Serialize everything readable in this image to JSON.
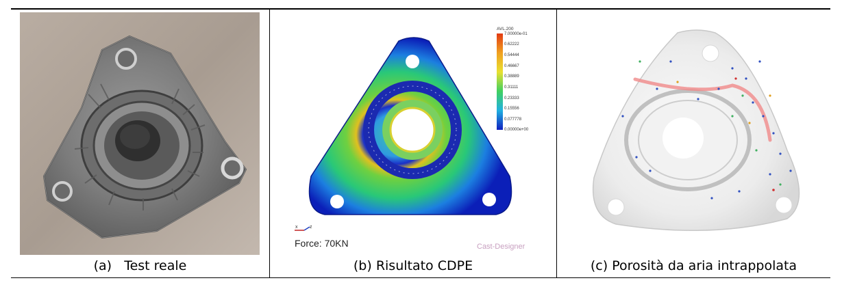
{
  "panels": [
    {
      "caption": "(a)   Test reale"
    },
    {
      "caption": "(b) Risultato CDPE",
      "legend_title": "AVL.200",
      "legend_ticks": [
        "7.00000e-01",
        "0.62222",
        "0.54444",
        "0.46667",
        "0.38889",
        "0.31111",
        "0.23333",
        "0.15556",
        "0.077778",
        "0.00000e+00"
      ],
      "force_label": "Force: 70KN",
      "brand": "Cast-Designer",
      "axis_x": "x",
      "axis_z": "z"
    },
    {
      "caption": "(c) Porosità da aria intrappolata"
    }
  ],
  "colors": {
    "fem_low": "#0b1fb8",
    "fem_high": "#e23a12",
    "border": "#000000"
  }
}
